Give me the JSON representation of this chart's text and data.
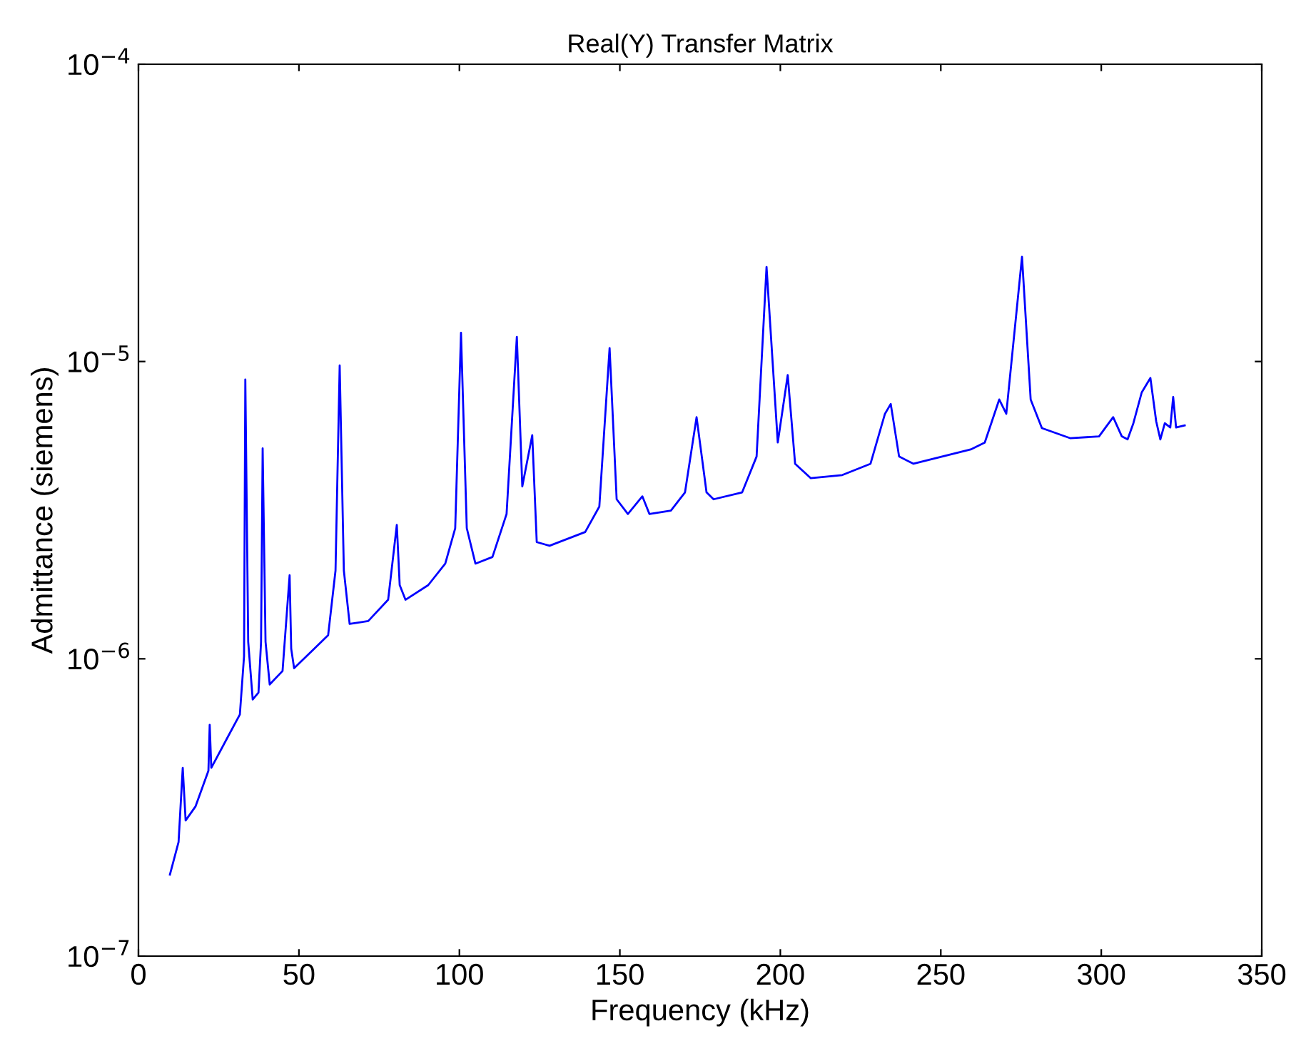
{
  "chart_data": {
    "type": "line",
    "title": "Real(Y) Transfer Matrix",
    "xlabel": "Frequency (kHz)",
    "ylabel": "Admittance (siemens)",
    "log": "y",
    "xlim": [
      0,
      350
    ],
    "xticks": [
      0,
      50,
      100,
      150,
      200,
      250,
      300,
      350
    ],
    "ylim": [
      1e-07,
      0.0001
    ],
    "yticks": [
      {
        "value": 1e-07,
        "label": "10$^{−7}$"
      },
      {
        "value": 1e-06,
        "label": "10$^{−6}$"
      },
      {
        "value": 1e-05,
        "label": "10$^{−5}$"
      },
      {
        "value": 0.0001,
        "label": "10$^{−4}$"
      }
    ],
    "grid": false,
    "marker": "none",
    "line_style": "solid",
    "series": [
      {
        "color": "#0000ff",
        "x": [
          9.8,
          12.5,
          13.8,
          14.7,
          17.8,
          21.8,
          22.2,
          22.7,
          28.0,
          31.6,
          32.9,
          33.3,
          34.2,
          35.6,
          37.4,
          38.2,
          38.7,
          39.6,
          40.9,
          44.9,
          47.1,
          47.6,
          48.5,
          54.7,
          59.1,
          61.4,
          62.7,
          64.0,
          65.8,
          71.6,
          77.8,
          80.5,
          81.4,
          83.2,
          90.3,
          95.6,
          98.7,
          100.5,
          102.3,
          105.0,
          110.3,
          114.7,
          117.9,
          119.6,
          122.7,
          124.1,
          128.1,
          139.2,
          143.6,
          146.8,
          149.0,
          152.5,
          157.0,
          159.2,
          165.9,
          170.3,
          173.9,
          177.0,
          179.2,
          188.1,
          192.6,
          195.7,
          199.2,
          202.3,
          204.6,
          209.5,
          219.3,
          228.1,
          232.6,
          234.4,
          237.0,
          241.5,
          259.3,
          263.7,
          268.2,
          270.4,
          275.3,
          278.0,
          281.5,
          290.4,
          299.3,
          303.7,
          306.4,
          308.2,
          310.0,
          312.6,
          315.3,
          317.1,
          318.4,
          319.8,
          321.5,
          322.4,
          323.3,
          326.0
        ],
        "values": [
          1.88e-07,
          2.42e-07,
          4.3e-07,
          2.86e-07,
          3.19e-07,
          4.2e-07,
          6e-07,
          4.3e-07,
          5.5e-07,
          6.5e-07,
          1.02e-06,
          8.7e-06,
          1.14e-06,
          7.3e-07,
          7.7e-07,
          1.14e-06,
          5.1e-06,
          1.14e-06,
          8.2e-07,
          9.1e-07,
          1.91e-06,
          1.08e-06,
          9.3e-07,
          1.08e-06,
          1.2e-06,
          1.98e-06,
          9.7e-06,
          1.98e-06,
          1.31e-06,
          1.34e-06,
          1.58e-06,
          2.82e-06,
          1.77e-06,
          1.58e-06,
          1.77e-06,
          2.09e-06,
          2.75e-06,
          1.25e-05,
          2.75e-06,
          2.09e-06,
          2.2e-06,
          3.07e-06,
          1.21e-05,
          3.8e-06,
          5.65e-06,
          2.47e-06,
          2.4e-06,
          2.67e-06,
          3.25e-06,
          1.11e-05,
          3.44e-06,
          3.07e-06,
          3.52e-06,
          3.07e-06,
          3.15e-06,
          3.63e-06,
          6.5e-06,
          3.63e-06,
          3.44e-06,
          3.63e-06,
          4.79e-06,
          2.08e-05,
          5.34e-06,
          9e-06,
          4.53e-06,
          4.05e-06,
          4.15e-06,
          4.53e-06,
          6.67e-06,
          7.2e-06,
          4.79e-06,
          4.53e-06,
          5.06e-06,
          5.34e-06,
          7.45e-06,
          6.67e-06,
          2.25e-05,
          7.45e-06,
          5.97e-06,
          5.52e-06,
          5.6e-06,
          6.5e-06,
          5.6e-06,
          5.47e-06,
          6.2e-06,
          7.87e-06,
          8.8e-06,
          6.3e-06,
          5.47e-06,
          6.2e-06,
          6e-06,
          7.6e-06,
          6e-06,
          6.1e-06
        ]
      }
    ]
  }
}
